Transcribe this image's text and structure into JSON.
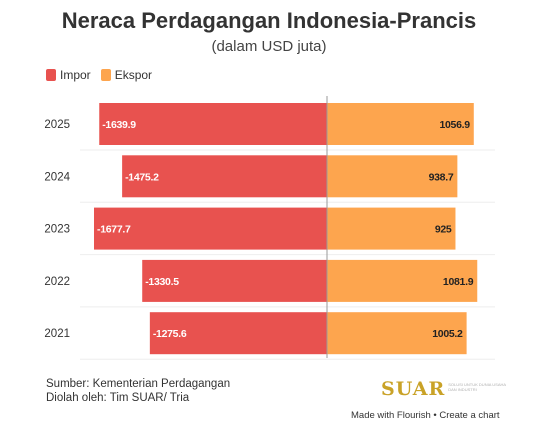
{
  "title": "Neraca Perdagangan Indonesia-Prancis",
  "subtitle": "(dalam USD juta)",
  "legend": [
    {
      "label": "Impor",
      "color": "#e8524f"
    },
    {
      "label": "Ekspor",
      "color": "#fda54e"
    }
  ],
  "chart_data": {
    "type": "bar",
    "orientation": "horizontal-diverging",
    "categories": [
      "2025",
      "2024",
      "2023",
      "2022",
      "2021"
    ],
    "series": [
      {
        "name": "Impor",
        "color": "#e8524f",
        "values": [
          -1639.9,
          -1475.2,
          -1677.7,
          -1330.5,
          -1275.6
        ]
      },
      {
        "name": "Ekspor",
        "color": "#fda54e",
        "values": [
          1056.9,
          938.7,
          925,
          1081.9,
          1005.2
        ]
      }
    ],
    "data_labels": {
      "Impor": [
        "-1639.9",
        "-1475.2",
        "-1677.7",
        "-1330.5",
        "-1275.6"
      ],
      "Ekspor": [
        "1056.9",
        "938.7",
        "925",
        "1081.9",
        "1005.2"
      ]
    },
    "xlim": [
      -1677.7,
      1200
    ],
    "grid": true,
    "legend_position": "top-left"
  },
  "footer": {
    "source": "Sumber: Kementerian Perdagangan",
    "processed": "Diolah oleh: Tim SUAR/ Tria",
    "logo_text": "SUAR",
    "logo_tagline": "SOLUSI UNTUK DUNIA USAHA DAN INDUSTRI",
    "credit": "Made with Flourish • Create a chart"
  }
}
